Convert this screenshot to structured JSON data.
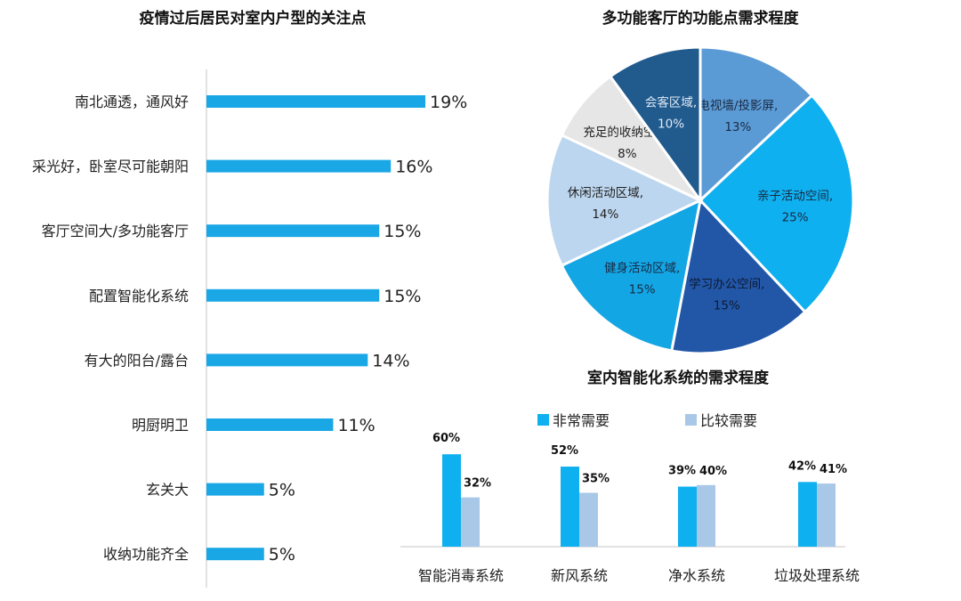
{
  "chart_data": [
    {
      "type": "bar",
      "orientation": "horizontal",
      "title": "疫情过后居民对室内户型的关注点",
      "categories": [
        "南北通透，通风好",
        "采光好，卧室尽可能朝阳",
        "客厅空间大/多功能客厅",
        "配置智能化系统",
        "有大的阳台/露台",
        "明厨明卫",
        "玄关大",
        "收纳功能齐全"
      ],
      "values": [
        19,
        16,
        15,
        15,
        14,
        11,
        5,
        5
      ],
      "labels": [
        "19%",
        "16%",
        "15%",
        "15%",
        "14%",
        "11%",
        "5%",
        "5%"
      ],
      "color": "#1aa7e6",
      "grid": false
    },
    {
      "type": "pie",
      "title": "多功能客厅的功能点需求程度",
      "slices": [
        {
          "label": "电视墙/投影屏, 13%",
          "value": 13,
          "color": "#5b9bd5",
          "text_color": "#1a2a44"
        },
        {
          "label": "亲子活动空间, 25%",
          "value": 25,
          "color": "#0fb0ef",
          "text_color": "#1a2a44"
        },
        {
          "label": "学习办公空间, 15%",
          "value": 15,
          "color": "#2257a8",
          "text_color": "#0d1a33"
        },
        {
          "label": "健身活动区域, 15%",
          "value": 15,
          "color": "#13a6e4",
          "text_color": "#1a2a44"
        },
        {
          "label": "休闲活动区域, 14%",
          "value": 14,
          "color": "#bcd6ef",
          "text_color": "#222"
        },
        {
          "label": "充足的收纳空间, 8%",
          "value": 8,
          "color": "#e6e6e6",
          "text_color": "#222"
        },
        {
          "label": "会客区域, 10%",
          "value": 10,
          "color": "#215b8e",
          "text_color": "#dfe9f5"
        }
      ]
    },
    {
      "type": "bar",
      "title": "室内智能化系统的需求程度",
      "categories": [
        "智能消毒系统",
        "新风系统",
        "净水系统",
        "垃圾处理系统"
      ],
      "series": [
        {
          "name": "非常需要",
          "values": [
            60,
            52,
            39,
            42
          ],
          "labels": [
            "60%",
            "52%",
            "39%",
            "42%"
          ],
          "color": "#0fb0ef"
        },
        {
          "name": "比较需要",
          "values": [
            32,
            35,
            40,
            41
          ],
          "labels": [
            "32%",
            "35%",
            "40%",
            "41%"
          ],
          "color": "#a9c8e8"
        }
      ],
      "legend": "top",
      "grid": false
    }
  ]
}
